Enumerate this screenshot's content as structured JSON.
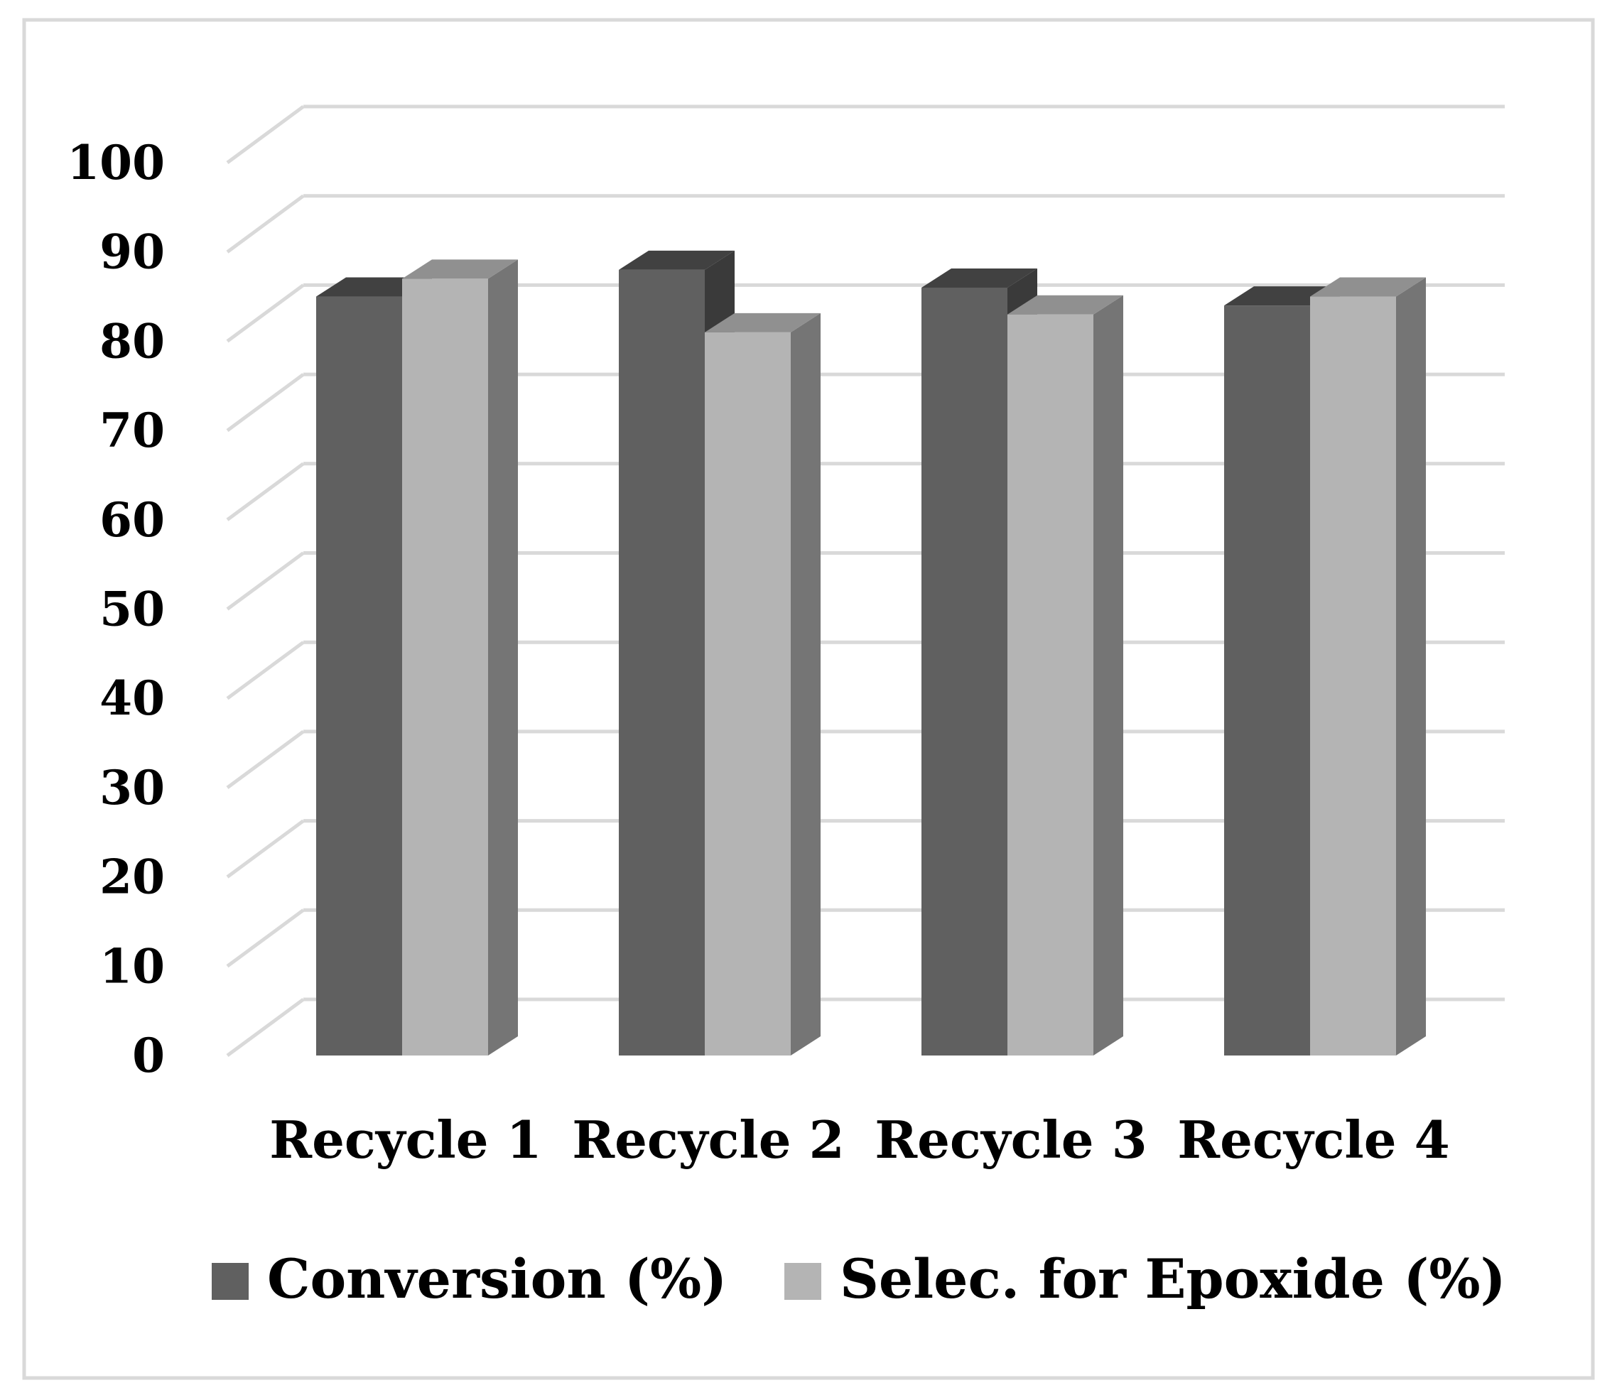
{
  "chart_data": {
    "type": "bar",
    "style": "3d-clustered-column",
    "categories": [
      "Recycle 1",
      "Recycle 2",
      "Recycle 3",
      "Recycle 4"
    ],
    "series": [
      {
        "name": "Conversion (%)",
        "values": [
          85,
          88,
          86,
          84
        ],
        "color": "#606060"
      },
      {
        "name": "Selec. for Epoxide (%)",
        "values": [
          87,
          81,
          83,
          85
        ],
        "color": "#b4b4b4"
      }
    ],
    "y_ticks": [
      "0",
      "10",
      "20",
      "30",
      "40",
      "50",
      "60",
      "70",
      "80",
      "90",
      "100"
    ],
    "ylim": [
      0,
      100
    ],
    "grid": true,
    "legend_position": "bottom",
    "title": "",
    "xlabel": "",
    "ylabel": ""
  },
  "colors": {
    "gridline": "#d9d9d9",
    "frame": "#d9d9d9",
    "text": "#000000"
  }
}
